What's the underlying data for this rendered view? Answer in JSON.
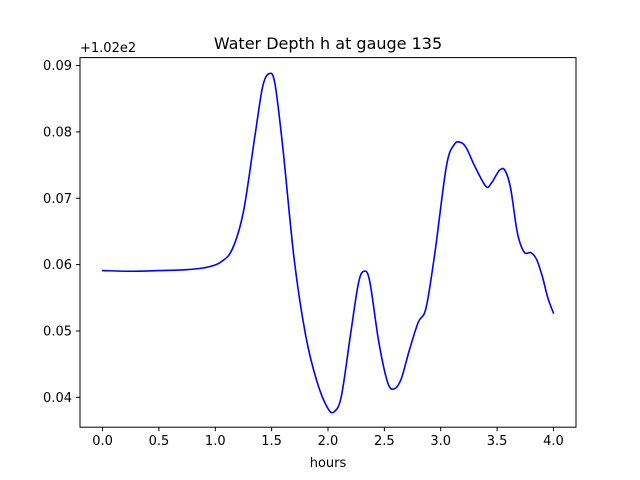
{
  "chart_data": {
    "type": "line",
    "title": "Water Depth h at gauge 135",
    "xlabel": "hours",
    "ylabel": "",
    "y_offset_label": "+1.02e2",
    "xlim": [
      -0.2,
      4.2
    ],
    "ylim": [
      0.0355,
      0.0912
    ],
    "grid": false,
    "x_ticks": [
      0.0,
      0.5,
      1.0,
      1.5,
      2.0,
      2.5,
      3.0,
      3.5,
      4.0
    ],
    "x_tick_labels": [
      "0.0",
      "0.5",
      "1.0",
      "1.5",
      "2.0",
      "2.5",
      "3.0",
      "3.5",
      "4.0"
    ],
    "y_ticks": [
      0.04,
      0.05,
      0.06,
      0.07,
      0.08,
      0.09
    ],
    "y_tick_labels": [
      "0.04",
      "0.05",
      "0.06",
      "0.07",
      "0.08",
      "0.09"
    ],
    "series": [
      {
        "color": "#0000ff",
        "x": [
          0.0,
          0.25,
          0.5,
          0.7,
          0.85,
          0.95,
          1.05,
          1.15,
          1.25,
          1.35,
          1.42,
          1.48,
          1.53,
          1.6,
          1.7,
          1.8,
          1.9,
          2.0,
          2.06,
          2.12,
          2.2,
          2.27,
          2.32,
          2.37,
          2.45,
          2.53,
          2.59,
          2.65,
          2.72,
          2.8,
          2.87,
          2.95,
          3.05,
          3.12,
          3.18,
          3.23,
          3.3,
          3.4,
          3.45,
          3.52,
          3.57,
          3.62,
          3.68,
          3.74,
          3.8,
          3.85,
          3.9,
          3.95,
          4.0
        ],
        "y": [
          0.0591,
          0.059,
          0.0591,
          0.0592,
          0.0594,
          0.0597,
          0.0604,
          0.0623,
          0.068,
          0.0792,
          0.0868,
          0.0888,
          0.0872,
          0.0775,
          0.0608,
          0.0495,
          0.0425,
          0.0383,
          0.0379,
          0.0403,
          0.0495,
          0.0572,
          0.059,
          0.0575,
          0.0484,
          0.0422,
          0.0413,
          0.0428,
          0.047,
          0.0513,
          0.0535,
          0.062,
          0.0748,
          0.0781,
          0.0784,
          0.0775,
          0.0749,
          0.0718,
          0.0723,
          0.0742,
          0.0742,
          0.0715,
          0.0648,
          0.0619,
          0.0618,
          0.0608,
          0.0583,
          0.055,
          0.0527
        ]
      }
    ]
  }
}
